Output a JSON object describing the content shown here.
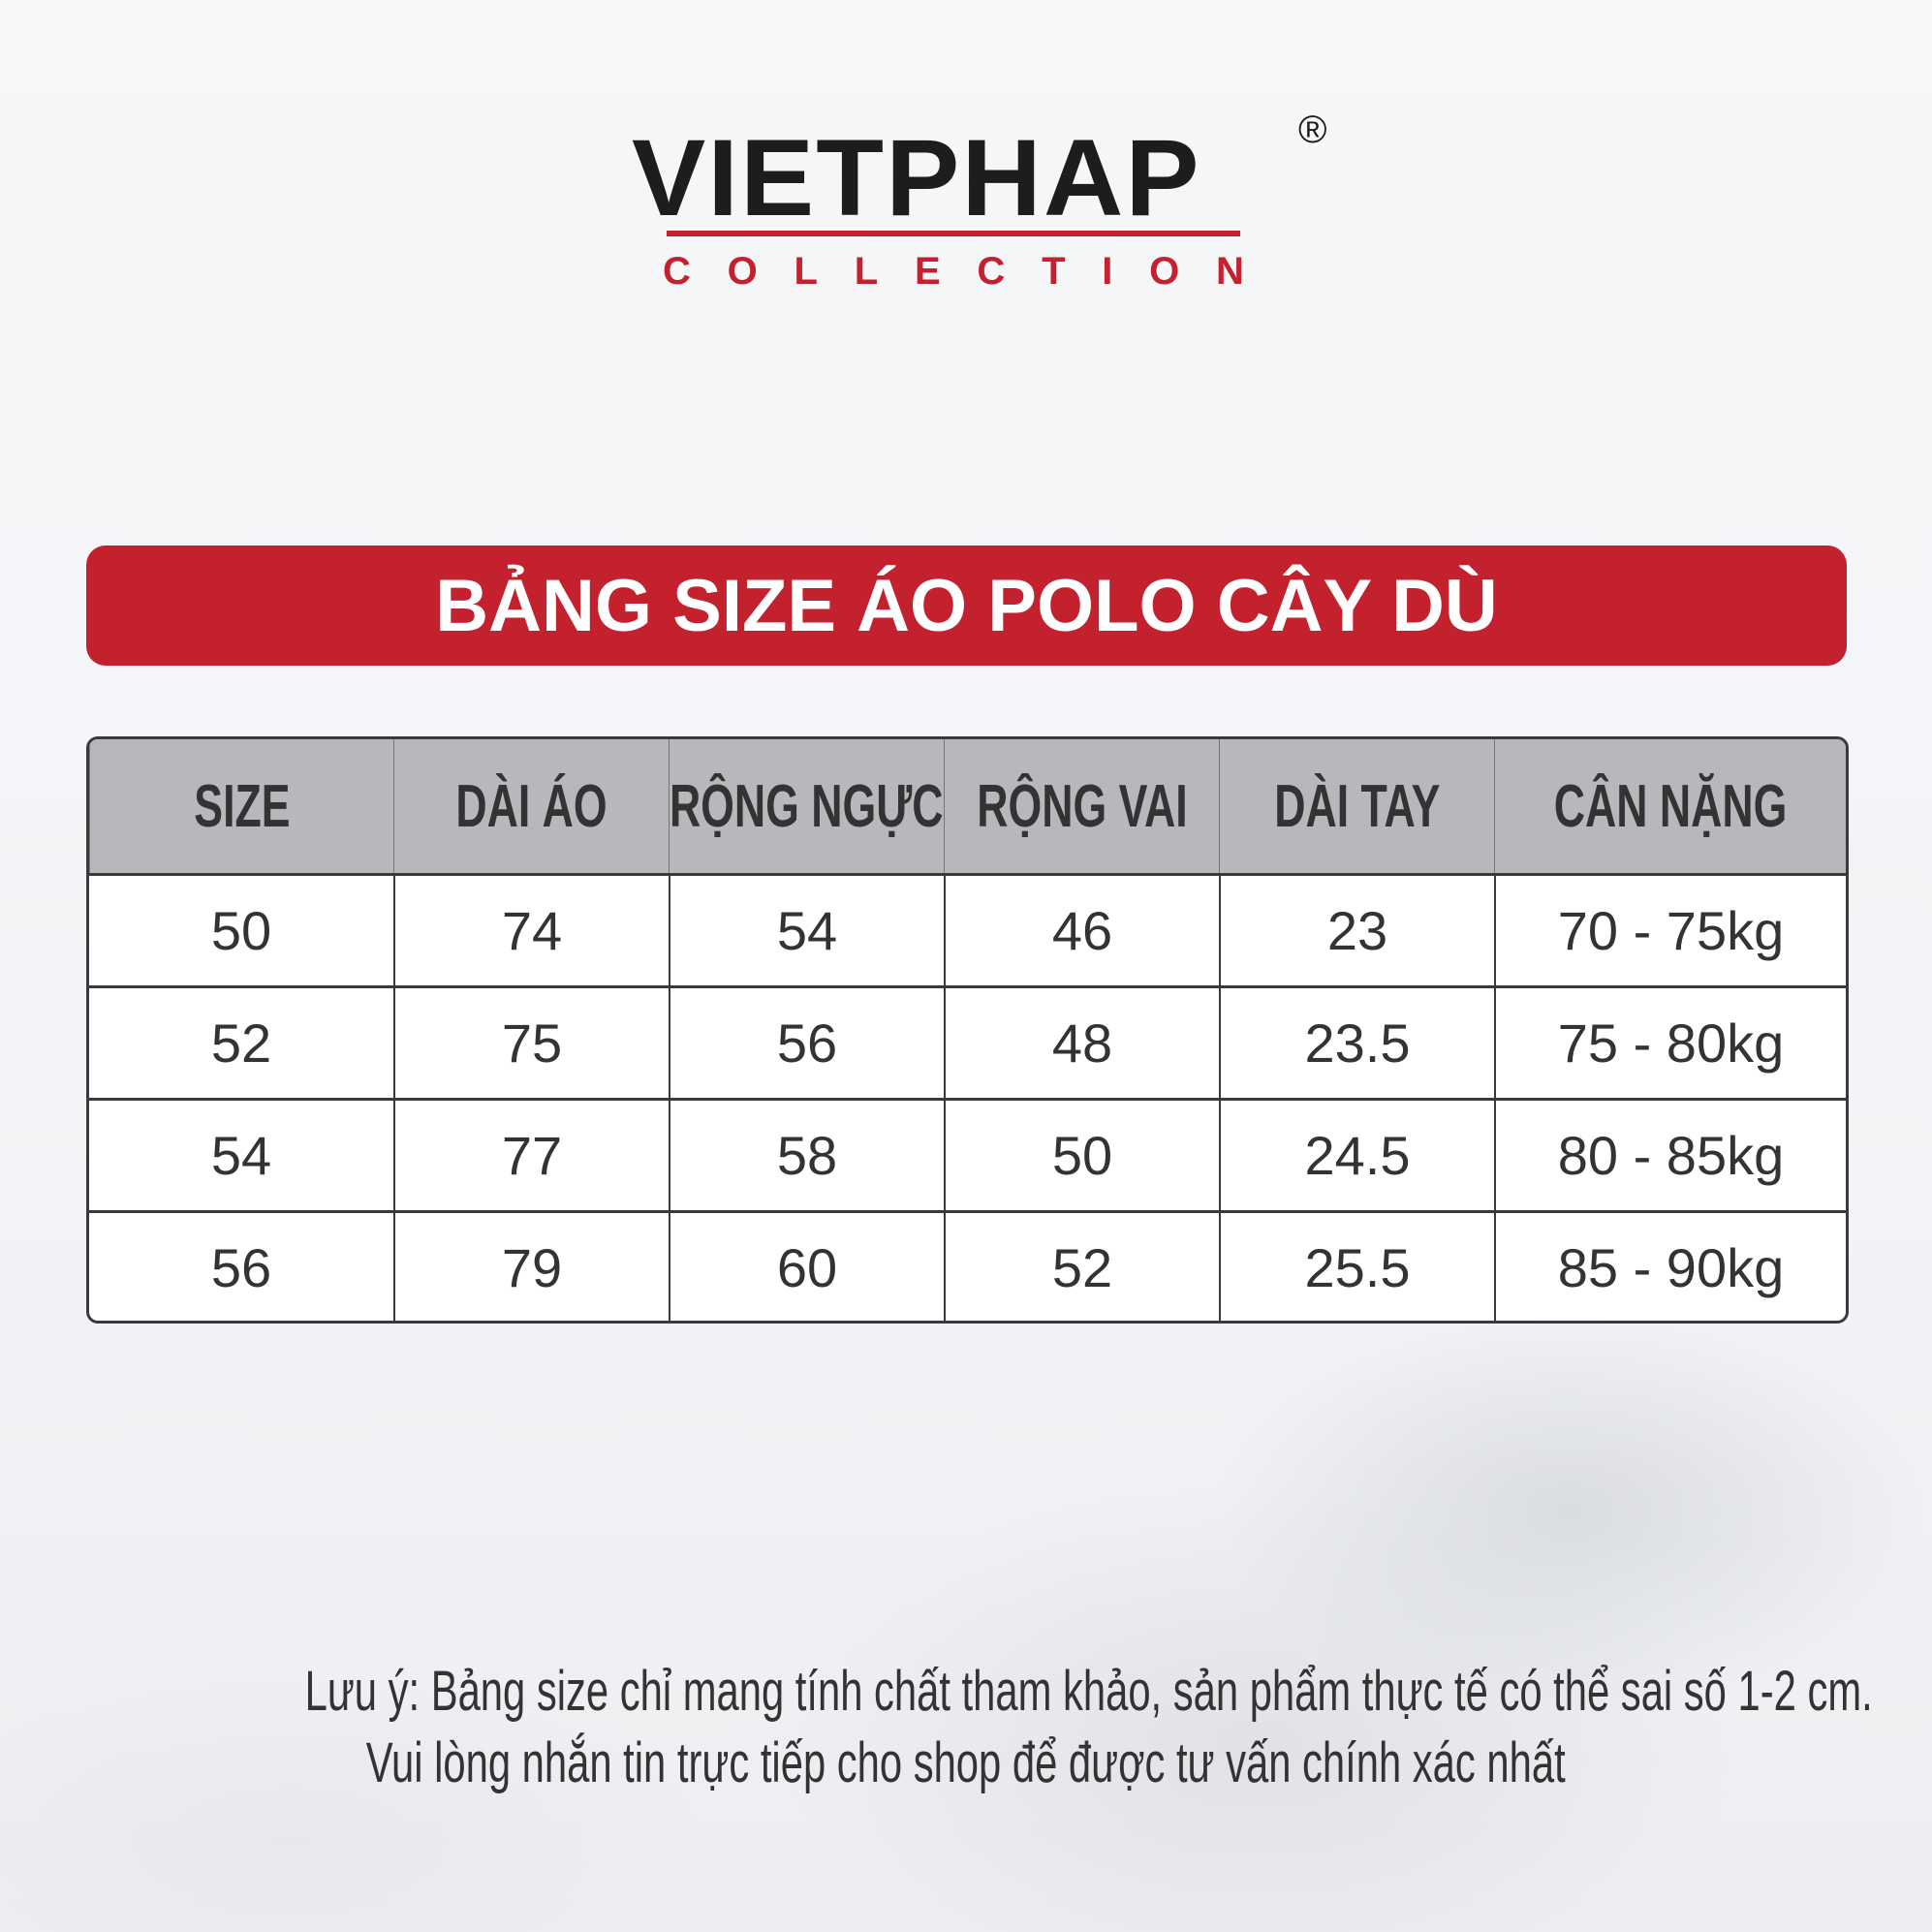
{
  "logo": {
    "brand": "VIETPHAP",
    "registered": "®",
    "sub": "COLLECTION"
  },
  "title": "BẢNG SIZE ÁO POLO CÂY DÙ",
  "colors": {
    "accent": "#c4212f",
    "header_bg": "#b6b8bc",
    "text": "#333333"
  },
  "table": {
    "headers": [
      "SIZE",
      "DÀI ÁO",
      "RỘNG NGỰC",
      "RỘNG VAI",
      "DÀI TAY",
      "CÂN NẶNG"
    ],
    "rows": [
      [
        "50",
        "74",
        "54",
        "46",
        "23",
        "70 - 75kg"
      ],
      [
        "52",
        "75",
        "56",
        "48",
        "23.5",
        "75 - 80kg"
      ],
      [
        "54",
        "77",
        "58",
        "50",
        "24.5",
        "80 - 85kg"
      ],
      [
        "56",
        "79",
        "60",
        "52",
        "25.5",
        "85 - 90kg"
      ]
    ]
  },
  "note": {
    "line1": "Lưu ý: Bảng size chỉ mang tính chất tham khảo, sản phẩm thực tế có thể sai số 1-2 cm.",
    "line2": "Vui lòng nhắn tin trực tiếp cho shop để được tư vấn chính xác nhất"
  }
}
